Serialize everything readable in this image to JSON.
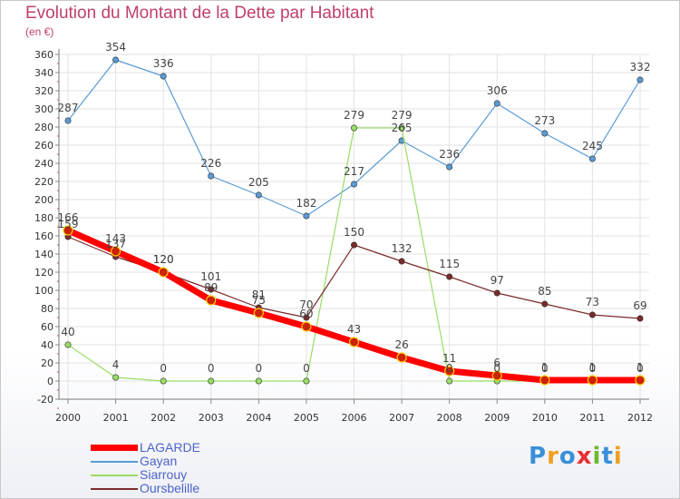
{
  "title": "Evolution du Montant de la Dette par Habitant",
  "unit": "(en €)",
  "logo": {
    "text": "Proxiti",
    "letters": [
      "P",
      "r",
      "o",
      "x",
      "i",
      "t",
      "i"
    ],
    "colors": [
      "#3a8fd8",
      "#f0a020",
      "#3a8fd8",
      "#e83030",
      "#70b830",
      "#3a8fd8",
      "#f0a020"
    ]
  },
  "chart_data": {
    "type": "line",
    "categories": [
      "2000",
      "2001",
      "2002",
      "2003",
      "2004",
      "2005",
      "2006",
      "2007",
      "2008",
      "2009",
      "2010",
      "2011",
      "2012"
    ],
    "ylim": [
      -20,
      360
    ],
    "yticks": [
      -20,
      0,
      20,
      40,
      60,
      80,
      100,
      120,
      140,
      160,
      180,
      200,
      220,
      240,
      260,
      280,
      300,
      320,
      340,
      360
    ],
    "grid": true,
    "legend_position": "bottom-left",
    "series": [
      {
        "name": "LAGARDE",
        "color": "#ff0000",
        "width": 7,
        "values": [
          166,
          143,
          120,
          89,
          75,
          60,
          43,
          26,
          11,
          6,
          1,
          1,
          1
        ]
      },
      {
        "name": "Gayan",
        "color": "#5a9bd5",
        "width": 1.2,
        "values": [
          287,
          354,
          336,
          226,
          205,
          182,
          217,
          265,
          236,
          306,
          273,
          245,
          332
        ]
      },
      {
        "name": "Siarrouy",
        "color": "#99dd66",
        "width": 1.2,
        "values": [
          40,
          4,
          0,
          0,
          0,
          0,
          279,
          279,
          0,
          0,
          0,
          0,
          0
        ]
      },
      {
        "name": "Oursbelille",
        "color": "#7a2a2a",
        "width": 1.2,
        "values": [
          159,
          137,
          120,
          101,
          81,
          70,
          150,
          132,
          115,
          97,
          85,
          73,
          69
        ]
      }
    ]
  }
}
